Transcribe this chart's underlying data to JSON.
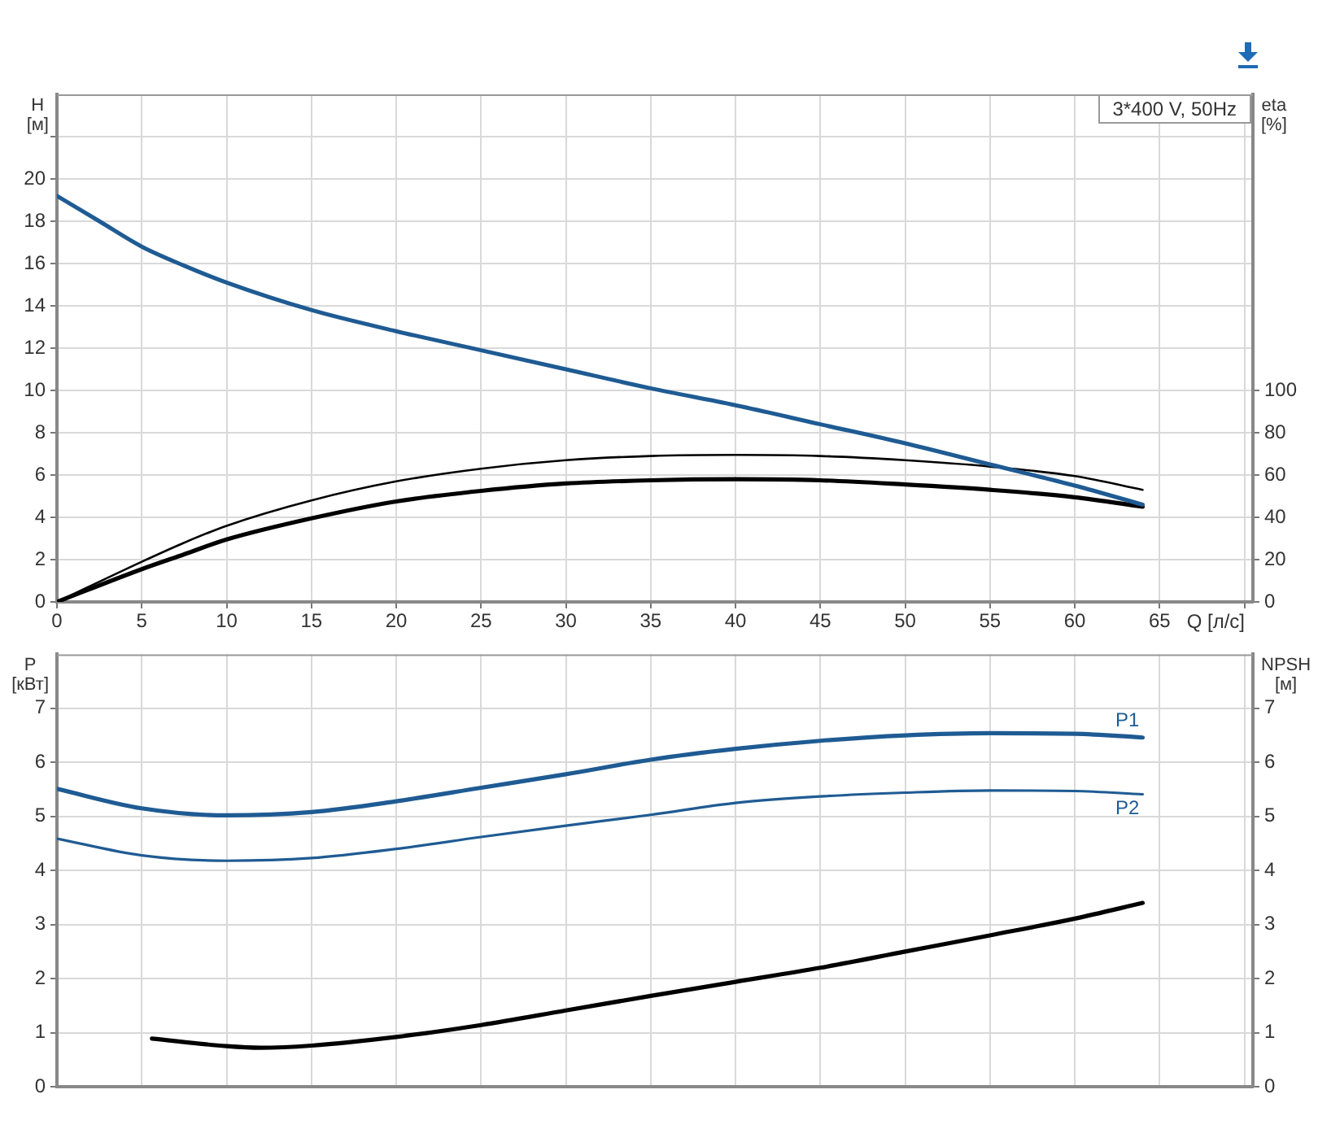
{
  "chart_data": [
    {
      "type": "line",
      "xlabel": "Q [л/с]",
      "ylabel": "H [м]",
      "y2label": "eta [%]",
      "annotations": [
        "3*400 V, 50Hz"
      ],
      "xlim": [
        0,
        70.5
      ],
      "xticks": [
        0,
        5,
        10,
        15,
        20,
        25,
        30,
        35,
        40,
        45,
        50,
        55,
        60,
        65,
        {
          "value": 70,
          "label": null
        }
      ],
      "ylim": [
        0,
        24
      ],
      "yticks": [
        0,
        2,
        4,
        6,
        8,
        10,
        12,
        14,
        16,
        18,
        20,
        {
          "value": 22,
          "label": null
        }
      ],
      "y2lim": [
        0,
        240
      ],
      "y2ticks": [
        0,
        20,
        40,
        60,
        80,
        100
      ],
      "grid": true,
      "legend": false,
      "marker": "none",
      "series": [
        {
          "color": "#1f5b93",
          "x": [
            0,
            2.5,
            5,
            7.5,
            10,
            15,
            20,
            25,
            30,
            35,
            40,
            45,
            50,
            55,
            60,
            64
          ],
          "values": [
            19.2,
            18.0,
            16.8,
            15.9,
            15.1,
            13.8,
            12.8,
            11.9,
            11.0,
            10.1,
            9.3,
            8.4,
            7.5,
            6.5,
            5.5,
            4.6
          ]
        },
        {
          "color": "#000000",
          "axis": "y2",
          "x": [
            0,
            5,
            7.5,
            10,
            15,
            20,
            25,
            30,
            35,
            40,
            45,
            50,
            55,
            60,
            64
          ],
          "values": [
            0,
            19,
            28,
            36,
            48,
            57,
            63,
            67,
            69,
            69.5,
            69,
            67,
            64,
            59.5,
            53
          ]
        },
        {
          "color": "#000000",
          "axis": "y2",
          "x": [
            0,
            5,
            7.5,
            10,
            15,
            20,
            25,
            30,
            35,
            40,
            45,
            50,
            55,
            60,
            64
          ],
          "values": [
            0,
            15.5,
            22.5,
            29.5,
            39.5,
            47.5,
            52.5,
            56,
            57.5,
            58,
            57.5,
            55.5,
            53,
            49.5,
            45
          ]
        }
      ]
    },
    {
      "type": "line",
      "ylabel": "P [кВт]",
      "y2label": "NPSH [м]",
      "xlim": [
        0,
        70.5
      ],
      "xticks": [
        0,
        5,
        10,
        15,
        20,
        25,
        30,
        35,
        40,
        45,
        50,
        55,
        60,
        65,
        {
          "value": 70,
          "label": null
        }
      ],
      "tick_labels": "y",
      "ylim": [
        0,
        8
      ],
      "yticks": [
        0,
        1,
        2,
        3,
        4,
        5,
        6,
        7
      ],
      "y2lim": [
        0,
        8
      ],
      "y2ticks": [
        0,
        1,
        2,
        3,
        4,
        5,
        6,
        7
      ],
      "grid": true,
      "legend": false,
      "marker": "none",
      "series": [
        {
          "name": "P1",
          "color": "#1f5b93",
          "x": [
            0,
            5,
            10,
            15,
            20,
            25,
            30,
            35,
            40,
            45,
            50,
            55,
            60,
            64
          ],
          "values": [
            5.51,
            5.15,
            5.02,
            5.08,
            5.28,
            5.53,
            5.78,
            6.05,
            6.25,
            6.4,
            6.5,
            6.54,
            6.53,
            6.46
          ]
        },
        {
          "name": "P2",
          "color": "#1f5b93",
          "x": [
            0,
            5,
            10,
            15,
            20,
            25,
            30,
            35,
            40,
            45,
            50,
            55,
            60,
            64
          ],
          "values": [
            4.59,
            4.28,
            4.18,
            4.23,
            4.4,
            4.62,
            4.83,
            5.03,
            5.25,
            5.37,
            5.44,
            5.48,
            5.47,
            5.41
          ]
        },
        {
          "color": "#000000",
          "axis": "y2",
          "x": [
            5.6,
            10,
            12,
            15,
            20,
            25,
            30,
            35,
            40,
            45,
            50,
            55,
            60,
            64
          ],
          "values": [
            0.89,
            0.75,
            0.72,
            0.76,
            0.92,
            1.14,
            1.41,
            1.68,
            1.94,
            2.2,
            2.5,
            2.8,
            3.11,
            3.4
          ]
        }
      ]
    }
  ]
}
